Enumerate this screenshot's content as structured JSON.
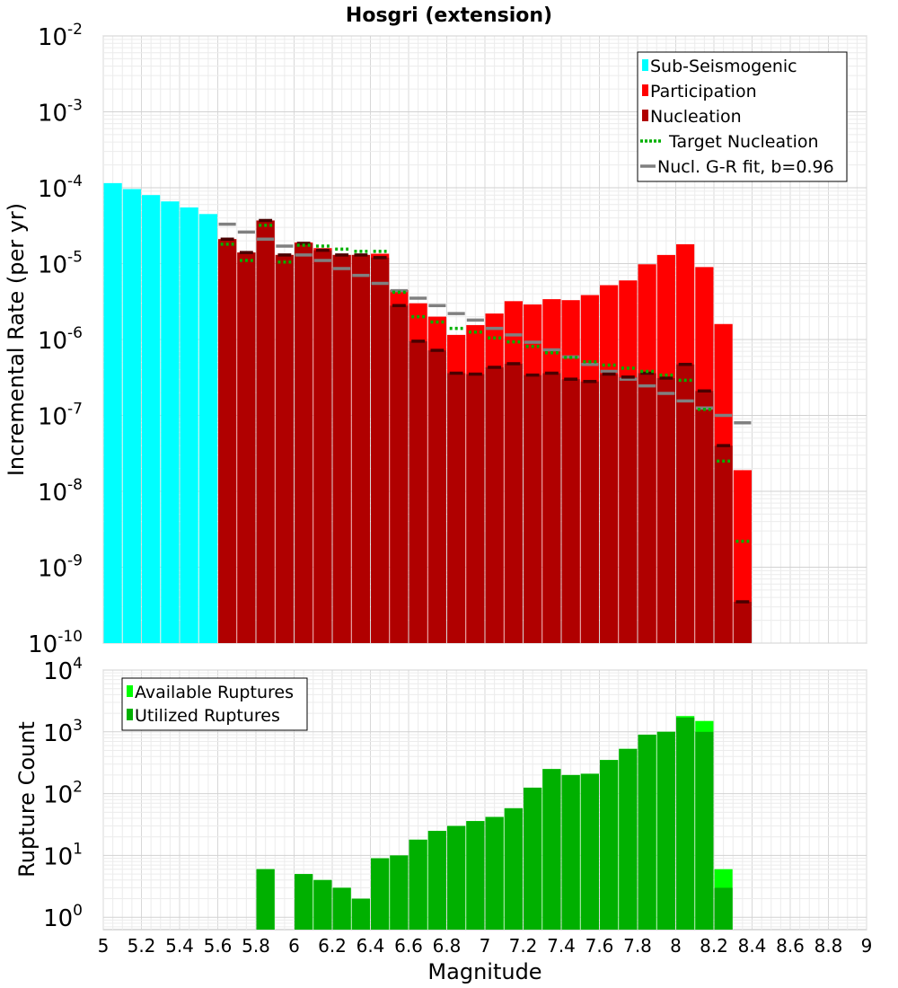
{
  "chart_data": [
    {
      "type": "bar",
      "title": "Hosgri (extension)",
      "ylabel": "Incremental Rate (per yr)",
      "xlabel": "",
      "y_scale": "log",
      "ylim_exp": [
        -10,
        -2
      ],
      "y_tick_exponents": [
        -10,
        -9,
        -8,
        -7,
        -6,
        -5,
        -4,
        -3,
        -2
      ],
      "xlim": [
        5,
        9
      ],
      "grid": true,
      "legend_position": "top-right",
      "legend": [
        {
          "key": "sub",
          "label": "Sub-Seismogenic",
          "style": "box",
          "color": "#00ffff"
        },
        {
          "key": "part",
          "label": "Participation",
          "style": "box",
          "color": "#ff0000"
        },
        {
          "key": "nucl",
          "label": "Nucleation",
          "style": "box",
          "color": "#b00000"
        },
        {
          "key": "target",
          "label": "Target Nucleation",
          "style": "dotted",
          "color": "#00b000"
        },
        {
          "key": "gr",
          "label": "Nucl. G-R fit, b=0.96",
          "style": "line",
          "color": "#808080"
        }
      ],
      "colors": {
        "sub": "#00ffff",
        "part": "#ff0000",
        "nucl": "#b00000",
        "target": "#00b000",
        "gr": "#808080",
        "nucl_line": "#4a0000"
      },
      "bar_width_mag": 0.095,
      "sub_seismogenic": {
        "x": [
          5.05,
          5.15,
          5.25,
          5.35,
          5.45,
          5.55
        ],
        "y": [
          0.000115,
          9.6e-05,
          8e-05,
          6.6e-05,
          5.5e-05,
          4.5e-05
        ]
      },
      "participation": {
        "x": [
          5.65,
          5.75,
          5.85,
          5.95,
          6.05,
          6.15,
          6.25,
          6.35,
          6.45,
          6.55,
          6.65,
          6.75,
          6.85,
          6.95,
          7.05,
          7.15,
          7.25,
          7.35,
          7.45,
          7.55,
          7.65,
          7.75,
          7.85,
          7.95,
          8.05,
          8.15,
          8.25,
          8.35
        ],
        "y": [
          2.1e-05,
          1.4e-05,
          3.7e-05,
          1.3e-05,
          1.9e-05,
          1.6e-05,
          1.3e-05,
          1.3e-05,
          1.35e-05,
          4.5e-06,
          3e-06,
          2e-06,
          1.15e-06,
          1.55e-06,
          2.2e-06,
          3.2e-06,
          2.9e-06,
          3.4e-06,
          3.3e-06,
          3.85e-06,
          5.2e-06,
          6e-06,
          9.8e-06,
          1.3e-05,
          1.8e-05,
          9e-06,
          1.6e-06,
          1.9e-08
        ]
      },
      "nucleation": {
        "x": [
          5.65,
          5.75,
          5.85,
          5.95,
          6.05,
          6.15,
          6.25,
          6.35,
          6.45,
          6.55,
          6.65,
          6.75,
          6.85,
          6.95,
          7.05,
          7.15,
          7.25,
          7.35,
          7.45,
          7.55,
          7.65,
          7.75,
          7.85,
          7.95,
          8.05,
          8.15,
          8.25,
          8.35
        ],
        "y": [
          2.1e-05,
          1.4e-05,
          3.7e-05,
          1.3e-05,
          1.85e-05,
          1.5e-05,
          1.3e-05,
          1.3e-05,
          1.2e-05,
          2.8e-06,
          9.5e-07,
          7.2e-07,
          3.6e-07,
          3.5e-07,
          4.3e-07,
          4.8e-07,
          3.4e-07,
          3.6e-07,
          3e-07,
          2.8e-07,
          3.5e-07,
          3.2e-07,
          3.6e-07,
          3.1e-07,
          4.7e-07,
          2.1e-07,
          4e-08,
          3.5e-10
        ]
      },
      "target_nucleation": {
        "x": [
          5.65,
          5.75,
          5.85,
          5.95,
          6.05,
          6.15,
          6.25,
          6.35,
          6.45,
          6.55,
          6.65,
          6.75,
          6.85,
          6.95,
          7.05,
          7.15,
          7.25,
          7.35,
          7.45,
          7.55,
          7.65,
          7.75,
          7.85,
          7.95,
          8.05,
          8.15,
          8.25,
          8.35
        ],
        "y": [
          1.8e-05,
          1.1e-05,
          3.2e-05,
          1.05e-05,
          1.75e-05,
          1.7e-05,
          1.55e-05,
          1.45e-05,
          1.45e-05,
          4.2e-06,
          2e-06,
          1.7e-06,
          1.4e-06,
          1.25e-06,
          1.05e-06,
          9.3e-07,
          8.1e-07,
          6.7e-07,
          5.8e-07,
          5.1e-07,
          4.6e-07,
          4.2e-07,
          3.8e-07,
          3.4e-07,
          2.9e-07,
          1.2e-07,
          2.5e-08,
          2.2e-09
        ]
      },
      "gr_fit": {
        "x": [
          5.65,
          5.75,
          5.85,
          5.95,
          6.05,
          6.15,
          6.25,
          6.35,
          6.45,
          6.55,
          6.65,
          6.75,
          6.85,
          6.95,
          7.05,
          7.15,
          7.25,
          7.35,
          7.45,
          7.55,
          7.65,
          7.75,
          7.85,
          7.95,
          8.05,
          8.15,
          8.25,
          8.35
        ],
        "y": [
          3.3e-05,
          2.6e-05,
          2.1e-05,
          1.7e-05,
          1.3e-05,
          1.1e-05,
          8.6e-06,
          7e-06,
          5.5e-06,
          4.4e-06,
          3.5e-06,
          2.8e-06,
          2.2e-06,
          1.8e-06,
          1.4e-06,
          1.15e-06,
          9.2e-07,
          7.3e-07,
          5.9e-07,
          4.7e-07,
          3.8e-07,
          3e-07,
          2.45e-07,
          1.95e-07,
          1.55e-07,
          1.25e-07,
          1e-07,
          8e-08
        ]
      }
    },
    {
      "type": "bar",
      "title": "",
      "xlabel": "Magnitude",
      "ylabel": "Rupture Count",
      "y_scale": "log",
      "ylim_exp": [
        -0.2,
        4
      ],
      "y_tick_exponents": [
        0,
        1,
        2,
        3,
        4
      ],
      "xlim": [
        5,
        9
      ],
      "x_ticks": [
        "5",
        "5.2",
        "5.4",
        "5.6",
        "5.8",
        "6",
        "6.2",
        "6.4",
        "6.6",
        "6.8",
        "7",
        "7.2",
        "7.4",
        "7.6",
        "7.8",
        "8",
        "8.2",
        "8.4",
        "8.6",
        "8.8",
        "9"
      ],
      "grid": true,
      "legend_position": "top-left",
      "legend": [
        {
          "key": "avail",
          "label": "Available Ruptures",
          "style": "box",
          "color": "#00ff00"
        },
        {
          "key": "util",
          "label": "Utilized Ruptures",
          "style": "box",
          "color": "#00b000"
        }
      ],
      "colors": {
        "avail": "#00ff00",
        "util": "#00b000"
      },
      "bar_width_mag": 0.095,
      "available": {
        "x": [
          5.85,
          6.05,
          6.15,
          6.25,
          6.35,
          6.45,
          6.55,
          6.65,
          6.75,
          6.85,
          6.95,
          7.05,
          7.15,
          7.25,
          7.35,
          7.45,
          7.55,
          7.65,
          7.75,
          7.85,
          7.95,
          8.05,
          8.15,
          8.25
        ],
        "y": [
          6,
          5,
          4,
          3,
          2,
          9,
          10,
          18,
          25,
          30,
          36,
          42,
          58,
          125,
          250,
          200,
          210,
          350,
          530,
          900,
          1000,
          1800,
          1500,
          6
        ]
      },
      "utilized": {
        "x": [
          5.85,
          6.05,
          6.15,
          6.25,
          6.35,
          6.45,
          6.55,
          6.65,
          6.75,
          6.85,
          6.95,
          7.05,
          7.15,
          7.25,
          7.35,
          7.45,
          7.55,
          7.65,
          7.75,
          7.85,
          7.95,
          8.05,
          8.15,
          8.25
        ],
        "y": [
          6,
          5,
          4,
          3,
          2,
          9,
          10,
          18,
          25,
          30,
          36,
          42,
          58,
          125,
          250,
          200,
          210,
          350,
          530,
          900,
          1000,
          1700,
          1000,
          3
        ]
      }
    }
  ]
}
